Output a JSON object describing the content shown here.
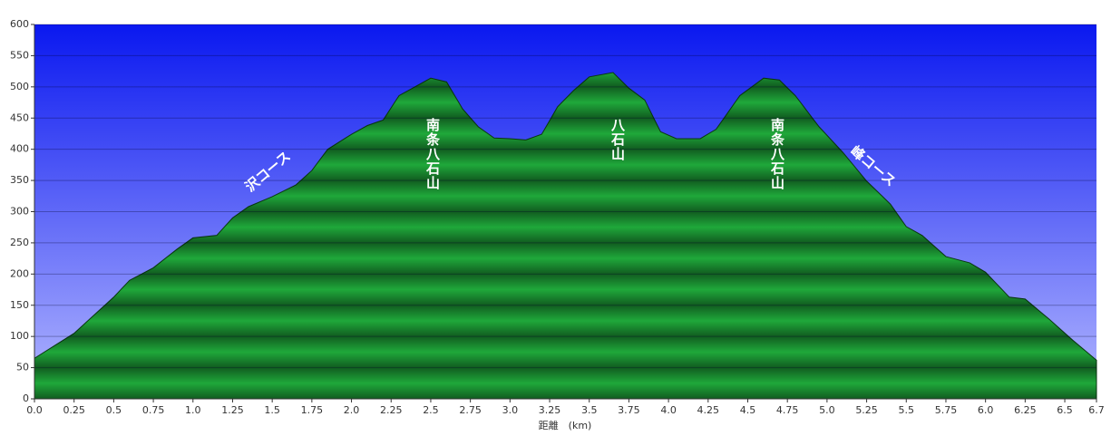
{
  "chart_data": {
    "type": "area",
    "x_label": "距離　(km)",
    "x": [
      0.0,
      0.25,
      0.5,
      0.6,
      0.75,
      0.9,
      1.0,
      1.15,
      1.25,
      1.35,
      1.5,
      1.65,
      1.75,
      1.85,
      2.0,
      2.1,
      2.2,
      2.3,
      2.4,
      2.5,
      2.6,
      2.7,
      2.8,
      2.9,
      3.0,
      3.1,
      3.2,
      3.3,
      3.4,
      3.5,
      3.65,
      3.75,
      3.85,
      3.95,
      4.05,
      4.2,
      4.3,
      4.45,
      4.6,
      4.7,
      4.8,
      4.95,
      5.1,
      5.25,
      5.4,
      5.5,
      5.6,
      5.75,
      5.9,
      6.0,
      6.15,
      6.25,
      6.4,
      6.55,
      6.7
    ],
    "values": [
      65,
      105,
      163,
      190,
      210,
      240,
      258,
      262,
      290,
      308,
      324,
      343,
      366,
      400,
      424,
      438,
      447,
      486,
      500,
      514,
      508,
      465,
      436,
      418,
      417,
      415,
      424,
      468,
      494,
      516,
      523,
      498,
      479,
      428,
      417,
      417,
      432,
      486,
      514,
      511,
      486,
      436,
      395,
      349,
      312,
      276,
      262,
      228,
      218,
      203,
      163,
      160,
      128,
      94,
      62
    ],
    "color": "#1fa83a",
    "background": [
      "#0a18f0",
      "#b4b8ff"
    ],
    "xlim": [
      0,
      6.7
    ],
    "xticks": [
      {
        "value": 0,
        "label": "0.0"
      },
      0.25,
      0.5,
      0.75,
      {
        "value": 1,
        "label": "1.0"
      },
      1.25,
      1.5,
      1.75,
      {
        "value": 2,
        "label": "2.0"
      },
      2.25,
      2.5,
      2.75,
      {
        "value": 3,
        "label": "3.0"
      },
      3.25,
      3.5,
      3.75,
      {
        "value": 4,
        "label": "4.0"
      },
      4.25,
      4.5,
      4.75,
      {
        "value": 5,
        "label": "5.0"
      },
      5.25,
      5.5,
      5.75,
      {
        "value": 6,
        "label": "6.0"
      },
      6.25,
      6.5,
      6.7
    ],
    "ylim": [
      0,
      600
    ],
    "yticks": [
      0,
      50,
      100,
      150,
      200,
      250,
      300,
      350,
      400,
      450,
      500,
      550,
      600
    ],
    "grid": true,
    "annotations": [
      "沢コース",
      "南条八石山",
      "八石山",
      "南条八石山",
      "峰コース"
    ]
  }
}
